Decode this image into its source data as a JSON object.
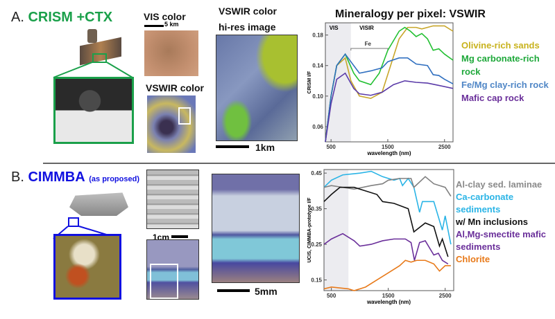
{
  "panel_a": {
    "letter": "A.",
    "title": "CRISM +CTX",
    "title_color": "#1aa04a",
    "vis_label": "VIS color",
    "vis_scale": "5 km",
    "vswir_label": "VSWIR color",
    "hires_label_1": "VSWIR color",
    "hires_label_2": "hi-res image",
    "hires_scale": "1km",
    "chart_title": "Mineralogy  per pixel: VSWIR",
    "legend": [
      {
        "label": "Olivine-rich sands",
        "color": "#c8b21c"
      },
      {
        "label": "Mg carbonate-rich rock",
        "color": "#1ea83a"
      },
      {
        "label": "Fe/Mg clay-rich rock",
        "color": "#4f86c6"
      },
      {
        "label": "Mafic cap rock",
        "color": "#6a2f9a"
      }
    ]
  },
  "panel_b": {
    "letter": "B.",
    "title": "CIMMBA",
    "subtitle": "(as proposed)",
    "title_color": "#1010e0",
    "scale_1": "1cm",
    "scale_2": "5mm",
    "legend": [
      {
        "label": "Al-clay sed. laminae",
        "color": "#8a8a8a"
      },
      {
        "label": "Ca-carbonate sediments",
        "color": "#2ab4e6"
      },
      {
        "label": "w/ Mn inclusions",
        "color": "#111111"
      },
      {
        "label": "Al,Mg-smectite mafic sediments",
        "color": "#6a2f9a"
      },
      {
        "label": "Chlorite",
        "color": "#e87a1a"
      }
    ]
  },
  "chart_data": [
    {
      "type": "line",
      "title": "Mineralogy  per pixel: VSWIR",
      "xlabel": "wavelength (nm)",
      "ylabel": "CRISM I/F",
      "xlim": [
        400,
        2650
      ],
      "ylim": [
        0.04,
        0.196
      ],
      "xticks": [
        500,
        1500,
        2500
      ],
      "yticks": [
        0.06,
        0.1,
        0.14,
        0.18
      ],
      "region_labels": [
        "VIS",
        "VISIR"
      ],
      "annotation": "Fe",
      "shaded_region": [
        400,
        850
      ],
      "series": [
        {
          "name": "Olivine-rich sands",
          "color": "#c8a62a",
          "x": [
            400,
            500,
            600,
            750,
            850,
            1000,
            1200,
            1400,
            1550,
            1700,
            1850,
            2000,
            2100,
            2300,
            2500,
            2650
          ],
          "y": [
            0.04,
            0.1,
            0.14,
            0.15,
            0.12,
            0.1,
            0.097,
            0.105,
            0.14,
            0.175,
            0.19,
            0.19,
            0.188,
            0.192,
            0.192,
            0.185
          ]
        },
        {
          "name": "Mg carbonate-rich rock",
          "color": "#22c032",
          "x": [
            400,
            500,
            600,
            750,
            900,
            1000,
            1200,
            1350,
            1500,
            1700,
            1800,
            1900,
            2000,
            2100,
            2200,
            2300,
            2400,
            2500,
            2650
          ],
          "y": [
            0.04,
            0.1,
            0.14,
            0.155,
            0.13,
            0.12,
            0.115,
            0.13,
            0.16,
            0.185,
            0.19,
            0.185,
            0.178,
            0.182,
            0.175,
            0.16,
            0.162,
            0.155,
            0.147
          ]
        },
        {
          "name": "Fe/Mg clay-rich rock",
          "color": "#2f6fc0",
          "x": [
            400,
            500,
            600,
            750,
            900,
            1000,
            1200,
            1400,
            1500,
            1700,
            1850,
            2000,
            2200,
            2300,
            2400,
            2500,
            2650
          ],
          "y": [
            0.04,
            0.1,
            0.14,
            0.155,
            0.14,
            0.13,
            0.133,
            0.137,
            0.145,
            0.15,
            0.15,
            0.142,
            0.14,
            0.128,
            0.127,
            0.122,
            0.116
          ]
        },
        {
          "name": "Mafic cap rock",
          "color": "#5a3aa8",
          "x": [
            400,
            500,
            600,
            750,
            900,
            1000,
            1200,
            1400,
            1600,
            1800,
            2000,
            2200,
            2400,
            2650
          ],
          "y": [
            0.04,
            0.09,
            0.122,
            0.13,
            0.11,
            0.103,
            0.101,
            0.105,
            0.115,
            0.12,
            0.118,
            0.117,
            0.114,
            0.11
          ]
        }
      ]
    },
    {
      "type": "line",
      "xlabel": "wavelength (nm)",
      "ylabel": "UCIS, CIMMBA-prototype I/F",
      "xlim": [
        370,
        2650
      ],
      "ylim": [
        0.12,
        0.46
      ],
      "xticks": [
        500,
        1500,
        2500
      ],
      "yticks": [
        0.15,
        0.25,
        0.35,
        0.45
      ],
      "shaded_region": [
        370,
        800
      ],
      "series": [
        {
          "name": "Ca-carbonate sediments",
          "color": "#2ab4e6",
          "x": [
            370,
            500,
            700,
            1000,
            1200,
            1400,
            1600,
            1700,
            1750,
            1850,
            1950,
            2050,
            2100,
            2300,
            2450,
            2500,
            2600
          ],
          "y": [
            0.41,
            0.43,
            0.445,
            0.45,
            0.455,
            0.44,
            0.43,
            0.435,
            0.415,
            0.435,
            0.41,
            0.34,
            0.37,
            0.37,
            0.29,
            0.33,
            0.25
          ]
        },
        {
          "name": "Al-clay sed. laminae",
          "color": "#808080",
          "x": [
            370,
            500,
            700,
            900,
            1200,
            1400,
            1500,
            1700,
            1900,
            1950,
            2150,
            2300,
            2500,
            2600
          ],
          "y": [
            0.41,
            0.415,
            0.41,
            0.405,
            0.415,
            0.42,
            0.43,
            0.435,
            0.435,
            0.41,
            0.44,
            0.42,
            0.41,
            0.385
          ]
        },
        {
          "name": "w/ Mn inclusions",
          "color": "#111111",
          "x": [
            370,
            500,
            650,
            900,
            1100,
            1300,
            1400,
            1600,
            1850,
            1950,
            2150,
            2300,
            2400,
            2450,
            2550
          ],
          "y": [
            0.37,
            0.39,
            0.41,
            0.41,
            0.4,
            0.39,
            0.37,
            0.365,
            0.35,
            0.285,
            0.31,
            0.3,
            0.245,
            0.265,
            0.215
          ]
        },
        {
          "name": "Al,Mg-smectite mafic sediments",
          "color": "#6a2f9a",
          "x": [
            370,
            500,
            700,
            900,
            1000,
            1200,
            1400,
            1600,
            1800,
            1900,
            1960,
            2050,
            2150,
            2300,
            2380,
            2450,
            2550
          ],
          "y": [
            0.25,
            0.265,
            0.28,
            0.26,
            0.245,
            0.25,
            0.26,
            0.265,
            0.265,
            0.255,
            0.205,
            0.255,
            0.26,
            0.22,
            0.225,
            0.205,
            0.195
          ]
        },
        {
          "name": "Chlorite",
          "color": "#e87a1a",
          "x": [
            370,
            500,
            800,
            900,
            1100,
            1300,
            1500,
            1700,
            1800,
            1900,
            2000,
            2150,
            2300,
            2400,
            2500,
            2600
          ],
          "y": [
            0.125,
            0.13,
            0.125,
            0.12,
            0.13,
            0.15,
            0.17,
            0.19,
            0.205,
            0.2,
            0.205,
            0.205,
            0.195,
            0.175,
            0.19,
            0.19
          ]
        }
      ]
    }
  ]
}
